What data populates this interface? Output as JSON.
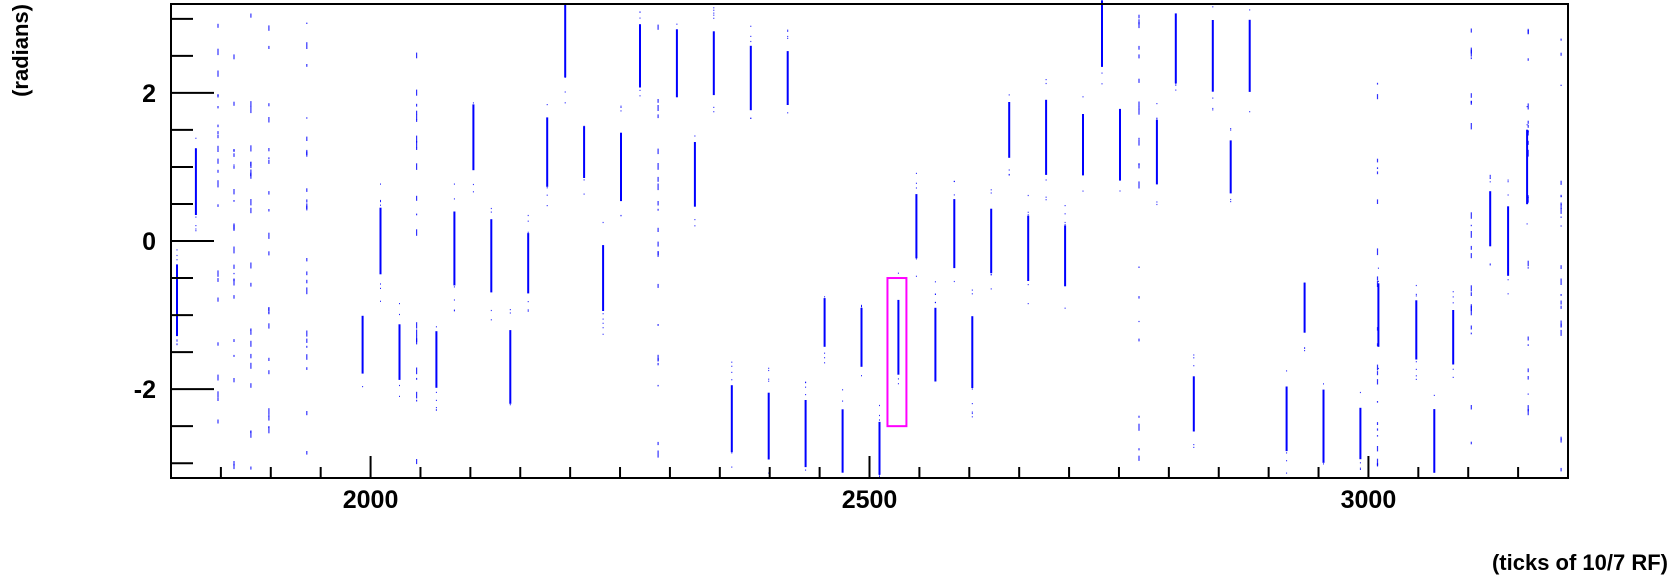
{
  "chart_data": {
    "type": "scatter",
    "title": "",
    "xlabel": "(ticks of 10/7 RF)",
    "ylabel": "(radians)",
    "xlim": [
      1800,
      3200
    ],
    "ylim": [
      -3.2,
      3.2
    ],
    "x_ticks": [
      {
        "value": 2000,
        "label": "2000"
      },
      {
        "value": 2500,
        "label": "2500"
      },
      {
        "value": 3000,
        "label": "3000"
      }
    ],
    "y_ticks": [
      {
        "value": 2,
        "label": "2"
      },
      {
        "value": 0,
        "label": "0"
      },
      {
        "value": -2,
        "label": "-2"
      }
    ],
    "grid": false,
    "legend": "none",
    "colors": {
      "points": "#0000ff",
      "highlight": "#ff00ff",
      "axes": "#000000"
    },
    "clusters": [
      {
        "x": 1806,
        "y": -0.8
      },
      {
        "x": 1825,
        "y": 0.8
      },
      {
        "x": 2010,
        "y": 0.0
      },
      {
        "x": 1992,
        "y": -1.4
      },
      {
        "x": 2029,
        "y": -1.5
      },
      {
        "x": 2066,
        "y": -1.6
      },
      {
        "x": 2084,
        "y": -0.1
      },
      {
        "x": 2103,
        "y": 1.4
      },
      {
        "x": 2121,
        "y": -0.2
      },
      {
        "x": 2140,
        "y": -1.7
      },
      {
        "x": 2158,
        "y": -0.3
      },
      {
        "x": 2177,
        "y": 1.2
      },
      {
        "x": 2195,
        "y": 2.7
      },
      {
        "x": 2214,
        "y": 1.2
      },
      {
        "x": 2233,
        "y": -0.5
      },
      {
        "x": 2251,
        "y": 1.0
      },
      {
        "x": 2270,
        "y": 2.5
      },
      {
        "x": 2307,
        "y": 2.4
      },
      {
        "x": 2325,
        "y": 0.9
      },
      {
        "x": 2344,
        "y": 2.4
      },
      {
        "x": 2362,
        "y": -2.4
      },
      {
        "x": 2381,
        "y": 2.2
      },
      {
        "x": 2399,
        "y": -2.5
      },
      {
        "x": 2418,
        "y": 2.2
      },
      {
        "x": 2436,
        "y": -2.6
      },
      {
        "x": 2455,
        "y": -1.1
      },
      {
        "x": 2473,
        "y": -2.7
      },
      {
        "x": 2492,
        "y": -1.3
      },
      {
        "x": 2510,
        "y": -2.8
      },
      {
        "x": 2529,
        "y": -1.3
      },
      {
        "x": 2547,
        "y": 0.2
      },
      {
        "x": 2566,
        "y": -1.4
      },
      {
        "x": 2585,
        "y": 0.1
      },
      {
        "x": 2603,
        "y": -1.5
      },
      {
        "x": 2622,
        "y": 0.0
      },
      {
        "x": 2640,
        "y": 1.5
      },
      {
        "x": 2659,
        "y": -0.1
      },
      {
        "x": 2677,
        "y": 1.4
      },
      {
        "x": 2696,
        "y": -0.2
      },
      {
        "x": 2714,
        "y": 1.3
      },
      {
        "x": 2733,
        "y": 2.8
      },
      {
        "x": 2751,
        "y": 1.3
      },
      {
        "x": 2788,
        "y": 1.2
      },
      {
        "x": 2807,
        "y": 2.6
      },
      {
        "x": 2825,
        "y": -2.2
      },
      {
        "x": 2844,
        "y": 2.5
      },
      {
        "x": 2862,
        "y": 1.0
      },
      {
        "x": 2881,
        "y": 2.5
      },
      {
        "x": 2918,
        "y": -2.4
      },
      {
        "x": 2936,
        "y": -0.9
      },
      {
        "x": 2955,
        "y": -2.5
      },
      {
        "x": 2992,
        "y": -2.6
      },
      {
        "x": 3010,
        "y": -1.0
      },
      {
        "x": 3048,
        "y": -1.2
      },
      {
        "x": 3066,
        "y": -2.7
      },
      {
        "x": 3085,
        "y": -1.3
      },
      {
        "x": 3122,
        "y": 0.3
      },
      {
        "x": 3140,
        "y": 0.0
      },
      {
        "x": 3159,
        "y": 1.0
      }
    ],
    "streaks": [
      {
        "x": 1847,
        "y0": -3.1,
        "y1": 3.1
      },
      {
        "x": 1863,
        "y0": -3.1,
        "y1": 3.1
      },
      {
        "x": 1880,
        "y0": -3.1,
        "y1": 3.1
      },
      {
        "x": 1898,
        "y0": -3.1,
        "y1": 3.1
      },
      {
        "x": 1936,
        "y0": -3.1,
        "y1": 3.1
      },
      {
        "x": 2046,
        "y0": -3.1,
        "y1": 3.1
      },
      {
        "x": 2288,
        "y0": -3.1,
        "y1": 3.1
      },
      {
        "x": 2770,
        "y0": -3.1,
        "y1": 3.1
      },
      {
        "x": 3009,
        "y0": -3.1,
        "y1": 3.1
      },
      {
        "x": 3103,
        "y0": -3.1,
        "y1": 3.1
      },
      {
        "x": 3160,
        "y0": -3.1,
        "y1": 3.1
      },
      {
        "x": 3193,
        "y0": -3.1,
        "y1": 3.1
      }
    ],
    "highlight_box": {
      "x0": 2518,
      "x1": 2537,
      "y0": -2.5,
      "y1": -0.5
    }
  }
}
